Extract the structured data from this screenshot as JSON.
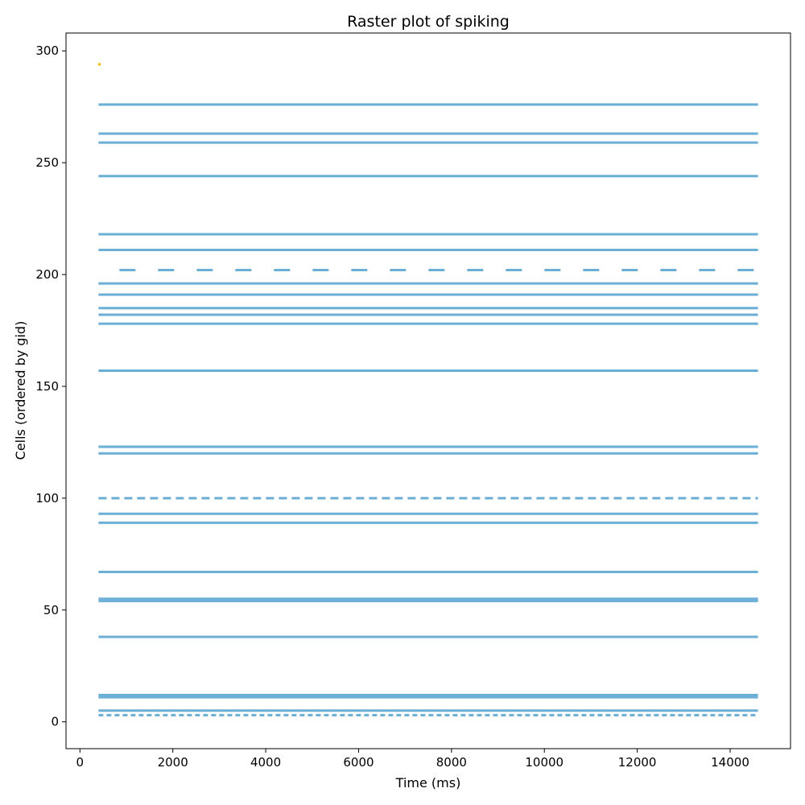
{
  "chart_data": {
    "type": "scatter",
    "title": "Raster plot of spiking",
    "xlabel": "Time (ms)",
    "ylabel": "Cells (ordered by gid)",
    "xlim": [
      -300,
      15300
    ],
    "ylim": [
      -12,
      308
    ],
    "xticks": [
      0,
      2000,
      4000,
      6000,
      8000,
      10000,
      12000,
      14000
    ],
    "yticks": [
      0,
      50,
      100,
      150,
      200,
      250,
      300
    ],
    "grid": false,
    "series": [
      {
        "color": "#6baed6",
        "marker": "tick",
        "rows": [
          {
            "gid": 3,
            "start": 400,
            "end": 14600,
            "pattern": "dashed-short"
          },
          {
            "gid": 5,
            "start": 400,
            "end": 14600,
            "pattern": "solid"
          },
          {
            "gid": 11,
            "start": 400,
            "end": 14600,
            "pattern": "solid"
          },
          {
            "gid": 12,
            "start": 400,
            "end": 14600,
            "pattern": "solid"
          },
          {
            "gid": 38,
            "start": 400,
            "end": 14600,
            "pattern": "solid"
          },
          {
            "gid": 54,
            "start": 400,
            "end": 14600,
            "pattern": "solid"
          },
          {
            "gid": 55,
            "start": 400,
            "end": 14600,
            "pattern": "solid"
          },
          {
            "gid": 67,
            "start": 400,
            "end": 14600,
            "pattern": "solid"
          },
          {
            "gid": 89,
            "start": 400,
            "end": 14600,
            "pattern": "solid"
          },
          {
            "gid": 93,
            "start": 400,
            "end": 14600,
            "pattern": "solid"
          },
          {
            "gid": 100,
            "start": 400,
            "end": 14600,
            "pattern": "dashed-medium"
          },
          {
            "gid": 120,
            "start": 400,
            "end": 14600,
            "pattern": "solid"
          },
          {
            "gid": 123,
            "start": 400,
            "end": 14600,
            "pattern": "solid"
          },
          {
            "gid": 157,
            "start": 400,
            "end": 14600,
            "pattern": "solid"
          },
          {
            "gid": 178,
            "start": 400,
            "end": 14600,
            "pattern": "solid"
          },
          {
            "gid": 182,
            "start": 400,
            "end": 14600,
            "pattern": "solid"
          },
          {
            "gid": 185,
            "start": 400,
            "end": 14600,
            "pattern": "solid"
          },
          {
            "gid": 191,
            "start": 400,
            "end": 14600,
            "pattern": "solid"
          },
          {
            "gid": 196,
            "start": 400,
            "end": 14600,
            "pattern": "solid"
          },
          {
            "gid": 202,
            "start": 850,
            "end": 14600,
            "pattern": "bursts"
          },
          {
            "gid": 211,
            "start": 400,
            "end": 14600,
            "pattern": "solid"
          },
          {
            "gid": 218,
            "start": 400,
            "end": 14600,
            "pattern": "solid"
          },
          {
            "gid": 244,
            "start": 400,
            "end": 14600,
            "pattern": "solid"
          },
          {
            "gid": 259,
            "start": 400,
            "end": 14600,
            "pattern": "solid"
          },
          {
            "gid": 263,
            "start": 400,
            "end": 14600,
            "pattern": "solid"
          },
          {
            "gid": 276,
            "start": 400,
            "end": 14600,
            "pattern": "solid"
          }
        ]
      },
      {
        "color": "#f5b800",
        "marker": "tick",
        "points": [
          {
            "x": 420,
            "gid": 294
          }
        ]
      }
    ]
  }
}
